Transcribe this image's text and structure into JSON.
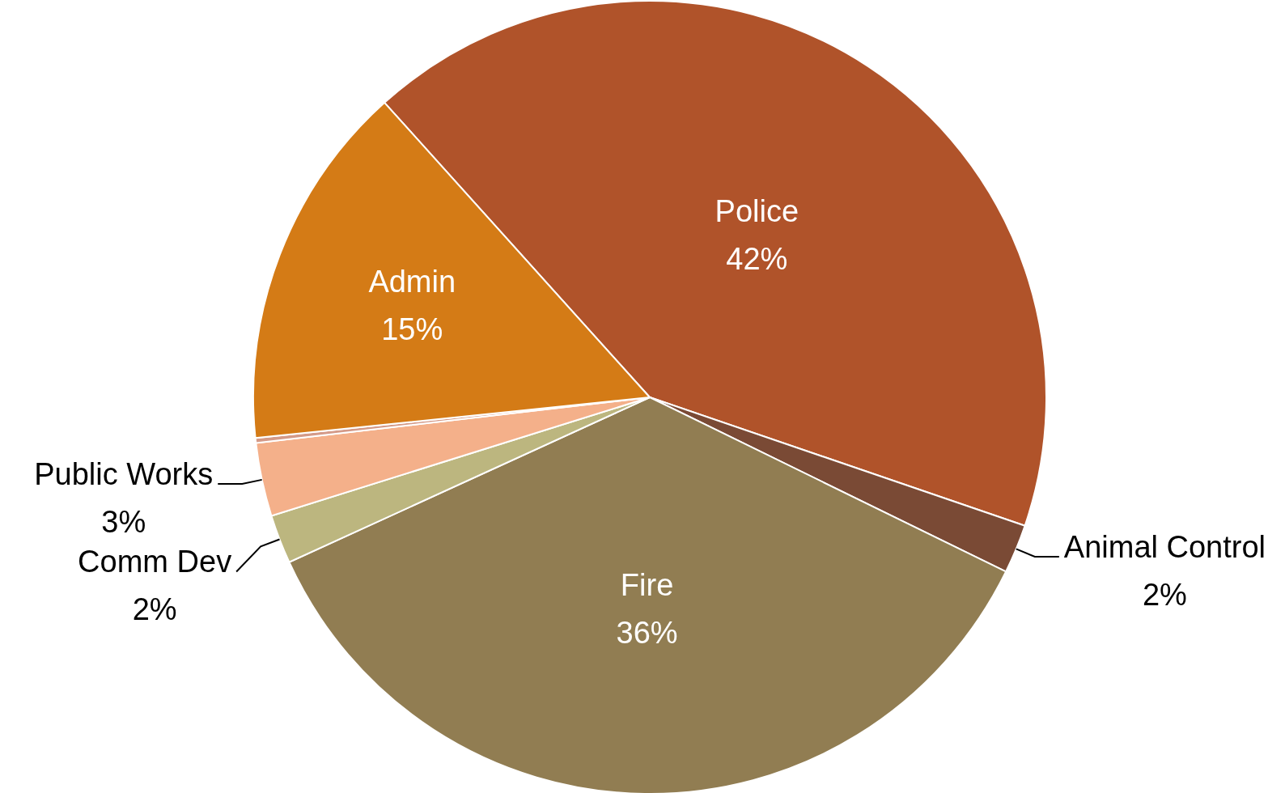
{
  "chart_data": {
    "type": "pie",
    "categories": [
      "Police",
      "Animal Control",
      "Fire",
      "Comm Dev",
      "Public Works",
      null,
      "Admin"
    ],
    "values": [
      42,
      2,
      36,
      2,
      3,
      0.2,
      15
    ],
    "value_labels": [
      "42%",
      "2%",
      "36%",
      "2%",
      "3%",
      null,
      "15%"
    ],
    "colors": [
      "#b0532a",
      "#7a4a35",
      "#917d52",
      "#bcb67f",
      "#f4b08a",
      "#d49a88",
      "#d47b16"
    ]
  }
}
